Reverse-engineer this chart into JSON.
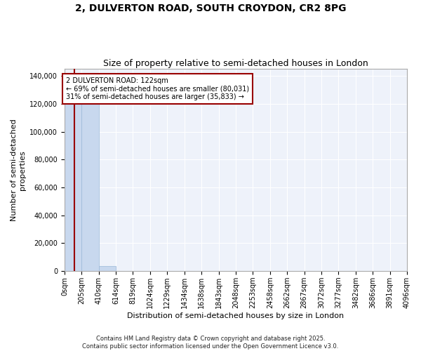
{
  "title": "2, DULVERTON ROAD, SOUTH CROYDON, CR2 8PG",
  "subtitle": "Size of property relative to semi-detached houses in London",
  "xlabel": "Distribution of semi-detached houses by size in London",
  "ylabel": "Number of semi-detached\nproperties",
  "property_size": 122,
  "annotation_line1": "2 DULVERTON ROAD: 122sqm",
  "annotation_line2": "← 69% of semi-detached houses are smaller (80,031)",
  "annotation_line3": "31% of semi-detached houses are larger (35,833) →",
  "bar_color": "#c8d8ee",
  "bar_edge_color": "#9ab8d8",
  "line_color": "#990000",
  "annotation_border_color": "#990000",
  "bg_color": "#eef2fa",
  "grid_color": "#ffffff",
  "footer": "Contains HM Land Registry data © Crown copyright and database right 2025.\nContains public sector information licensed under the Open Government Licence v3.0.",
  "bin_edges": [
    0,
    205,
    410,
    614,
    819,
    1024,
    1229,
    1434,
    1638,
    1843,
    2048,
    2253,
    2458,
    2662,
    2867,
    3072,
    3277,
    3482,
    3686,
    3891,
    4096
  ],
  "bin_labels": [
    "0sqm",
    "205sqm",
    "410sqm",
    "614sqm",
    "819sqm",
    "1024sqm",
    "1229sqm",
    "1434sqm",
    "1638sqm",
    "1843sqm",
    "2048sqm",
    "2253sqm",
    "2458sqm",
    "2662sqm",
    "2867sqm",
    "3072sqm",
    "3277sqm",
    "3482sqm",
    "3686sqm",
    "3891sqm",
    "4096sqm"
  ],
  "bar_heights": [
    130000,
    130000,
    3500,
    200,
    50,
    20,
    10,
    6,
    4,
    3,
    2,
    2,
    1,
    1,
    1,
    1,
    1,
    0,
    0,
    0
  ],
  "ylim": [
    0,
    145000
  ],
  "yticks": [
    0,
    20000,
    40000,
    60000,
    80000,
    100000,
    120000,
    140000
  ],
  "title_fontsize": 10,
  "subtitle_fontsize": 9,
  "tick_fontsize": 7,
  "ylabel_fontsize": 8,
  "xlabel_fontsize": 8,
  "annotation_fontsize": 7,
  "footer_fontsize": 6
}
